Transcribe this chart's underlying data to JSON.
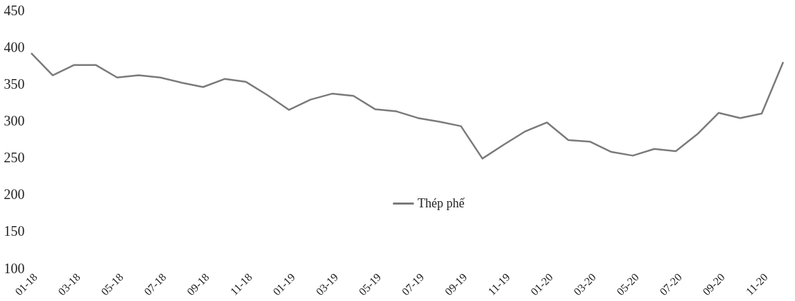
{
  "chart_data": {
    "type": "line",
    "categories": [
      "01-18",
      null,
      "03-18",
      null,
      "05-18",
      null,
      "07-18",
      null,
      "09-18",
      null,
      "11-18",
      null,
      "01-19",
      null,
      "03-19",
      null,
      "05-19",
      null,
      "07-19",
      null,
      "09-19",
      null,
      "11-19",
      null,
      "01-20",
      null,
      "03-20",
      null,
      "05-20",
      null,
      "07-20",
      null,
      "09-20",
      null,
      "11-20",
      null
    ],
    "series": [
      {
        "name": "Thép phế",
        "color": "#7a7a7a",
        "values": [
          392,
          362,
          376,
          376,
          359,
          362,
          359,
          352,
          346,
          357,
          353,
          335,
          315,
          329,
          337,
          334,
          316,
          313,
          304,
          299,
          293,
          249,
          268,
          286,
          298,
          274,
          272,
          258,
          253,
          262,
          259,
          282,
          311,
          304,
          310,
          380
        ]
      }
    ],
    "ylim": [
      100,
      450
    ],
    "yticks": [
      100,
      150,
      200,
      250,
      300,
      350,
      400,
      450
    ],
    "grid": false,
    "legend": "bottom",
    "marker": "none",
    "line_style": "solid"
  }
}
